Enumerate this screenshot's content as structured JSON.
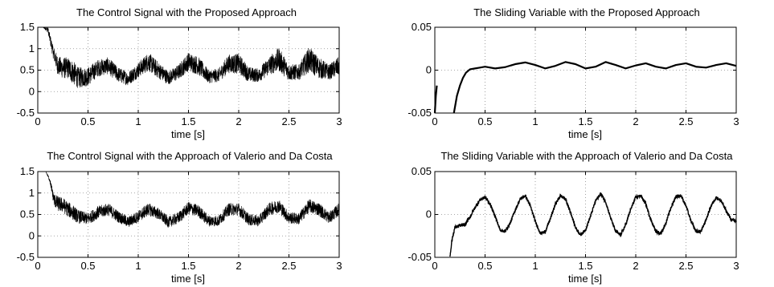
{
  "figure": {
    "background": "#ffffff",
    "line_color": "#000000",
    "grid_color": "#8c8c8c"
  },
  "chart_data": [
    {
      "type": "line",
      "title": "The Control Signal with the Proposed Approach",
      "xlabel": "time [s]",
      "ylabel": "",
      "xlim": [
        0,
        3
      ],
      "ylim": [
        -0.5,
        1.5
      ],
      "xticks": [
        0,
        0.5,
        1,
        1.5,
        2,
        2.5,
        3
      ],
      "xtick_labels": [
        "0",
        "0.5",
        "1",
        "1.5",
        "2",
        "2.5",
        "3"
      ],
      "yticks": [
        -0.5,
        0,
        0.5,
        1,
        1.5
      ],
      "ytick_labels": [
        "-0.5",
        "0",
        "0.5",
        "1",
        "1.5"
      ],
      "grid": true,
      "series": [
        {
          "color": "#000000",
          "style": "noisy-band",
          "x": [
            0,
            0.05,
            0.1,
            0.15,
            0.2,
            0.25,
            0.3,
            0.35,
            0.4,
            0.5,
            0.6,
            0.7,
            0.8,
            0.9,
            1.0,
            1.1,
            1.2,
            1.3,
            1.4,
            1.5,
            1.6,
            1.7,
            1.8,
            1.9,
            2.0,
            2.1,
            2.2,
            2.3,
            2.4,
            2.5,
            2.6,
            2.7,
            2.8,
            2.9,
            3.0
          ],
          "center": [
            1.5,
            1.5,
            1.45,
            0.95,
            0.6,
            0.55,
            0.55,
            0.45,
            0.32,
            0.35,
            0.55,
            0.6,
            0.4,
            0.3,
            0.5,
            0.7,
            0.5,
            0.32,
            0.45,
            0.7,
            0.6,
            0.35,
            0.38,
            0.65,
            0.65,
            0.4,
            0.38,
            0.6,
            0.75,
            0.45,
            0.45,
            0.75,
            0.55,
            0.45,
            0.6
          ],
          "band": [
            0,
            0,
            0.08,
            0.15,
            0.22,
            0.25,
            0.25,
            0.28,
            0.25,
            0.22,
            0.2,
            0.2,
            0.18,
            0.16,
            0.18,
            0.22,
            0.2,
            0.16,
            0.18,
            0.22,
            0.22,
            0.16,
            0.16,
            0.22,
            0.24,
            0.18,
            0.16,
            0.22,
            0.28,
            0.2,
            0.18,
            0.3,
            0.25,
            0.18,
            0.22
          ]
        }
      ]
    },
    {
      "type": "line",
      "title": "The Sliding Variable with the Proposed Approach",
      "xlabel": "time [s]",
      "ylabel": "",
      "xlim": [
        0,
        3
      ],
      "ylim": [
        -0.05,
        0.05
      ],
      "xticks": [
        0,
        0.5,
        1,
        1.5,
        2,
        2.5,
        3
      ],
      "xtick_labels": [
        "0",
        "0.5",
        "1",
        "1.5",
        "2",
        "2.5",
        "3"
      ],
      "yticks": [
        -0.05,
        0,
        0.05
      ],
      "ytick_labels": [
        "-0.05",
        "0",
        "0.05"
      ],
      "grid": true,
      "series": [
        {
          "color": "#000000",
          "style": "smooth",
          "x": [
            0.0,
            0.01,
            0.02,
            0.16,
            0.19,
            0.22,
            0.25,
            0.28,
            0.31,
            0.35,
            0.4,
            0.45,
            0.5,
            0.6,
            0.7,
            0.8,
            0.9,
            1.0,
            1.1,
            1.2,
            1.3,
            1.4,
            1.5,
            1.6,
            1.7,
            1.8,
            1.9,
            2.0,
            2.1,
            2.2,
            2.3,
            2.4,
            2.5,
            2.6,
            2.7,
            2.8,
            2.9,
            3.0
          ],
          "values": [
            -0.05,
            -0.03,
            -0.018,
            null,
            -0.05,
            -0.03,
            -0.018,
            -0.009,
            -0.003,
            0.001,
            0.002,
            0.003,
            0.004,
            0.002,
            0.0035,
            0.007,
            0.009,
            0.006,
            0.002,
            0.005,
            0.0095,
            0.007,
            0.002,
            0.004,
            0.0095,
            0.006,
            0.002,
            0.0055,
            0.008,
            0.004,
            0.002,
            0.006,
            0.008,
            0.004,
            0.003,
            0.006,
            0.008,
            0.005
          ]
        }
      ]
    },
    {
      "type": "line",
      "title": "The Control Signal with the Approach of Valerio and Da Costa",
      "xlabel": "time [s]",
      "ylabel": "",
      "xlim": [
        0,
        3
      ],
      "ylim": [
        -0.5,
        1.5
      ],
      "xticks": [
        0,
        0.5,
        1,
        1.5,
        2,
        2.5,
        3
      ],
      "xtick_labels": [
        "0",
        "0.5",
        "1",
        "1.5",
        "2",
        "2.5",
        "3"
      ],
      "yticks": [
        -0.5,
        0,
        0.5,
        1,
        1.5
      ],
      "ytick_labels": [
        "-0.5",
        "0",
        "0.5",
        "1",
        "1.5"
      ],
      "grid": true,
      "series": [
        {
          "color": "#000000",
          "style": "noisy-band",
          "x": [
            0,
            0.08,
            0.12,
            0.16,
            0.2,
            0.25,
            0.3,
            0.35,
            0.4,
            0.5,
            0.6,
            0.7,
            0.8,
            0.9,
            1.0,
            1.1,
            1.2,
            1.3,
            1.4,
            1.5,
            1.6,
            1.7,
            1.8,
            1.9,
            2.0,
            2.1,
            2.2,
            2.3,
            2.4,
            2.5,
            2.6,
            2.7,
            2.8,
            2.9,
            3.0
          ],
          "center": [
            1.5,
            1.5,
            1.3,
            0.85,
            0.75,
            0.72,
            0.62,
            0.55,
            0.45,
            0.4,
            0.55,
            0.62,
            0.45,
            0.32,
            0.45,
            0.62,
            0.52,
            0.32,
            0.42,
            0.65,
            0.58,
            0.35,
            0.35,
            0.62,
            0.62,
            0.38,
            0.35,
            0.62,
            0.7,
            0.42,
            0.4,
            0.7,
            0.62,
            0.42,
            0.62
          ],
          "band": [
            0,
            0,
            0.06,
            0.15,
            0.18,
            0.18,
            0.18,
            0.18,
            0.16,
            0.14,
            0.15,
            0.15,
            0.14,
            0.13,
            0.14,
            0.15,
            0.14,
            0.13,
            0.14,
            0.15,
            0.15,
            0.13,
            0.13,
            0.15,
            0.15,
            0.14,
            0.13,
            0.15,
            0.16,
            0.14,
            0.14,
            0.16,
            0.16,
            0.14,
            0.15
          ]
        }
      ]
    },
    {
      "type": "line",
      "title": "The Sliding Variable with the Approach of Valerio and Da Costa",
      "xlabel": "time [s]",
      "ylabel": "",
      "xlim": [
        0,
        3
      ],
      "ylim": [
        -0.05,
        0.05
      ],
      "xticks": [
        0,
        0.5,
        1,
        1.5,
        2,
        2.5,
        3
      ],
      "xtick_labels": [
        "0",
        "0.5",
        "1",
        "1.5",
        "2",
        "2.5",
        "3"
      ],
      "yticks": [
        -0.05,
        0,
        0.05
      ],
      "ytick_labels": [
        "-0.05",
        "0",
        "0.05"
      ],
      "grid": true,
      "series": [
        {
          "color": "#000000",
          "style": "wavy-noise",
          "x": [
            0.15,
            0.17,
            0.2,
            0.25,
            0.3,
            0.35,
            0.4,
            0.45,
            0.5,
            0.55,
            0.6,
            0.65,
            0.7,
            0.75,
            0.8,
            0.85,
            0.9,
            0.95,
            1.0,
            1.05,
            1.1,
            1.15,
            1.2,
            1.25,
            1.3,
            1.35,
            1.4,
            1.45,
            1.5,
            1.55,
            1.6,
            1.65,
            1.7,
            1.75,
            1.8,
            1.85,
            1.9,
            1.95,
            2.0,
            2.05,
            2.1,
            2.15,
            2.2,
            2.25,
            2.3,
            2.35,
            2.4,
            2.45,
            2.5,
            2.55,
            2.6,
            2.65,
            2.7,
            2.75,
            2.8,
            2.85,
            2.9,
            2.95,
            3.0
          ],
          "values": [
            -0.05,
            -0.03,
            -0.015,
            -0.013,
            -0.012,
            -0.003,
            0.008,
            0.017,
            0.02,
            0.012,
            -0.002,
            -0.018,
            -0.02,
            -0.01,
            0.005,
            0.018,
            0.022,
            0.01,
            -0.008,
            -0.022,
            -0.02,
            -0.005,
            0.012,
            0.022,
            0.018,
            0.003,
            -0.015,
            -0.024,
            -0.018,
            -0.002,
            0.016,
            0.024,
            0.015,
            -0.004,
            -0.02,
            -0.024,
            -0.012,
            0.006,
            0.02,
            0.022,
            0.012,
            -0.006,
            -0.02,
            -0.022,
            -0.01,
            0.008,
            0.021,
            0.022,
            0.01,
            -0.008,
            -0.02,
            -0.02,
            -0.006,
            0.01,
            0.02,
            0.016,
            0.004,
            -0.006,
            -0.008
          ]
        }
      ]
    }
  ]
}
